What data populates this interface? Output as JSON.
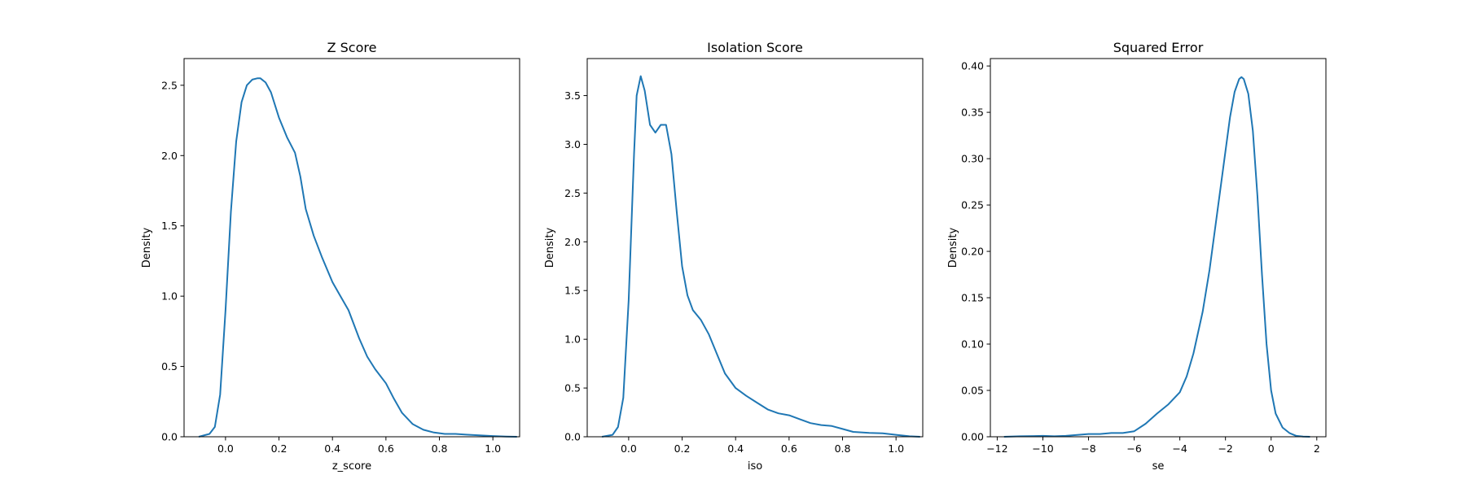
{
  "chart_data": [
    {
      "type": "line",
      "title": "Z Score",
      "xlabel": "z_score",
      "ylabel": "Density",
      "xlim": [
        -0.155,
        1.1
      ],
      "ylim": [
        0,
        2.69
      ],
      "xticks": [
        0.0,
        0.2,
        0.4,
        0.6,
        0.8,
        1.0
      ],
      "xtick_labels": [
        "0.0",
        "0.2",
        "0.4",
        "0.6",
        "0.8",
        "1.0"
      ],
      "yticks": [
        0.0,
        0.5,
        1.0,
        1.5,
        2.0,
        2.5
      ],
      "ytick_labels": [
        "0.0",
        "0.5",
        "1.0",
        "1.5",
        "2.0",
        "2.5"
      ],
      "color": "#1f77b4",
      "series": [
        {
          "x": [
            -0.1,
            -0.06,
            -0.04,
            -0.02,
            0.0,
            0.02,
            0.04,
            0.06,
            0.08,
            0.1,
            0.12,
            0.13,
            0.15,
            0.17,
            0.2,
            0.23,
            0.26,
            0.28,
            0.3,
            0.33,
            0.36,
            0.4,
            0.43,
            0.46,
            0.5,
            0.53,
            0.56,
            0.6,
            0.63,
            0.66,
            0.7,
            0.74,
            0.78,
            0.82,
            0.86,
            0.9,
            0.95,
            1.0,
            1.05,
            1.09
          ],
          "y": [
            0.0,
            0.02,
            0.07,
            0.3,
            0.9,
            1.6,
            2.1,
            2.38,
            2.5,
            2.54,
            2.55,
            2.55,
            2.52,
            2.45,
            2.27,
            2.13,
            2.02,
            1.85,
            1.62,
            1.43,
            1.28,
            1.1,
            1.0,
            0.9,
            0.7,
            0.57,
            0.48,
            0.38,
            0.27,
            0.17,
            0.09,
            0.05,
            0.03,
            0.02,
            0.02,
            0.015,
            0.01,
            0.005,
            0.002,
            0.0
          ]
        }
      ]
    },
    {
      "type": "line",
      "title": "Isolation Score",
      "xlabel": "iso",
      "ylabel": "Density",
      "xlim": [
        -0.155,
        1.1
      ],
      "ylim": [
        0,
        3.88
      ],
      "xticks": [
        0.0,
        0.2,
        0.4,
        0.6,
        0.8,
        1.0
      ],
      "xtick_labels": [
        "0.0",
        "0.2",
        "0.4",
        "0.6",
        "0.8",
        "1.0"
      ],
      "yticks": [
        0.0,
        0.5,
        1.0,
        1.5,
        2.0,
        2.5,
        3.0,
        3.5
      ],
      "ytick_labels": [
        "0.0",
        "0.5",
        "1.0",
        "1.5",
        "2.0",
        "2.5",
        "3.0",
        "3.5"
      ],
      "color": "#1f77b4",
      "series": [
        {
          "x": [
            -0.1,
            -0.06,
            -0.04,
            -0.02,
            0.0,
            0.02,
            0.03,
            0.045,
            0.06,
            0.08,
            0.1,
            0.12,
            0.14,
            0.16,
            0.18,
            0.2,
            0.22,
            0.24,
            0.27,
            0.3,
            0.33,
            0.36,
            0.4,
            0.44,
            0.48,
            0.52,
            0.56,
            0.6,
            0.64,
            0.68,
            0.72,
            0.76,
            0.8,
            0.84,
            0.9,
            0.95,
            1.0,
            1.05,
            1.09
          ],
          "y": [
            0.0,
            0.02,
            0.1,
            0.4,
            1.4,
            2.9,
            3.5,
            3.7,
            3.55,
            3.2,
            3.12,
            3.2,
            3.2,
            2.9,
            2.3,
            1.75,
            1.45,
            1.3,
            1.2,
            1.05,
            0.85,
            0.65,
            0.5,
            0.42,
            0.35,
            0.28,
            0.24,
            0.22,
            0.18,
            0.14,
            0.12,
            0.11,
            0.08,
            0.05,
            0.04,
            0.035,
            0.02,
            0.005,
            0.0
          ]
        }
      ]
    },
    {
      "type": "line",
      "title": "Squared Error",
      "xlabel": "se",
      "ylabel": "Density",
      "xlim": [
        -12.3,
        2.4
      ],
      "ylim": [
        0,
        0.408
      ],
      "xticks": [
        -12,
        -10,
        -8,
        -6,
        -4,
        -2,
        0,
        2
      ],
      "xtick_labels": [
        "−12",
        "−10",
        "−8",
        "−6",
        "−4",
        "−2",
        "0",
        "2"
      ],
      "yticks": [
        0.0,
        0.05,
        0.1,
        0.15,
        0.2,
        0.25,
        0.3,
        0.35,
        0.4
      ],
      "ytick_labels": [
        "0.00",
        "0.05",
        "0.10",
        "0.15",
        "0.20",
        "0.25",
        "0.30",
        "0.35",
        "0.40"
      ],
      "color": "#1f77b4",
      "series": [
        {
          "x": [
            -11.7,
            -11.0,
            -10.0,
            -9.5,
            -9.0,
            -8.5,
            -8.0,
            -7.5,
            -7.0,
            -6.5,
            -6.0,
            -5.5,
            -5.0,
            -4.5,
            -4.0,
            -3.7,
            -3.4,
            -3.0,
            -2.7,
            -2.4,
            -2.1,
            -1.8,
            -1.6,
            -1.4,
            -1.3,
            -1.2,
            -1.0,
            -0.8,
            -0.6,
            -0.4,
            -0.2,
            0.0,
            0.2,
            0.5,
            0.8,
            1.1,
            1.4,
            1.7
          ],
          "y": [
            0.0,
            0.0005,
            0.001,
            0.0005,
            0.001,
            0.002,
            0.003,
            0.003,
            0.004,
            0.004,
            0.006,
            0.014,
            0.025,
            0.035,
            0.048,
            0.065,
            0.09,
            0.135,
            0.18,
            0.235,
            0.29,
            0.345,
            0.372,
            0.386,
            0.388,
            0.386,
            0.37,
            0.33,
            0.26,
            0.175,
            0.1,
            0.05,
            0.025,
            0.01,
            0.004,
            0.001,
            0.0003,
            0.0
          ]
        }
      ]
    }
  ]
}
